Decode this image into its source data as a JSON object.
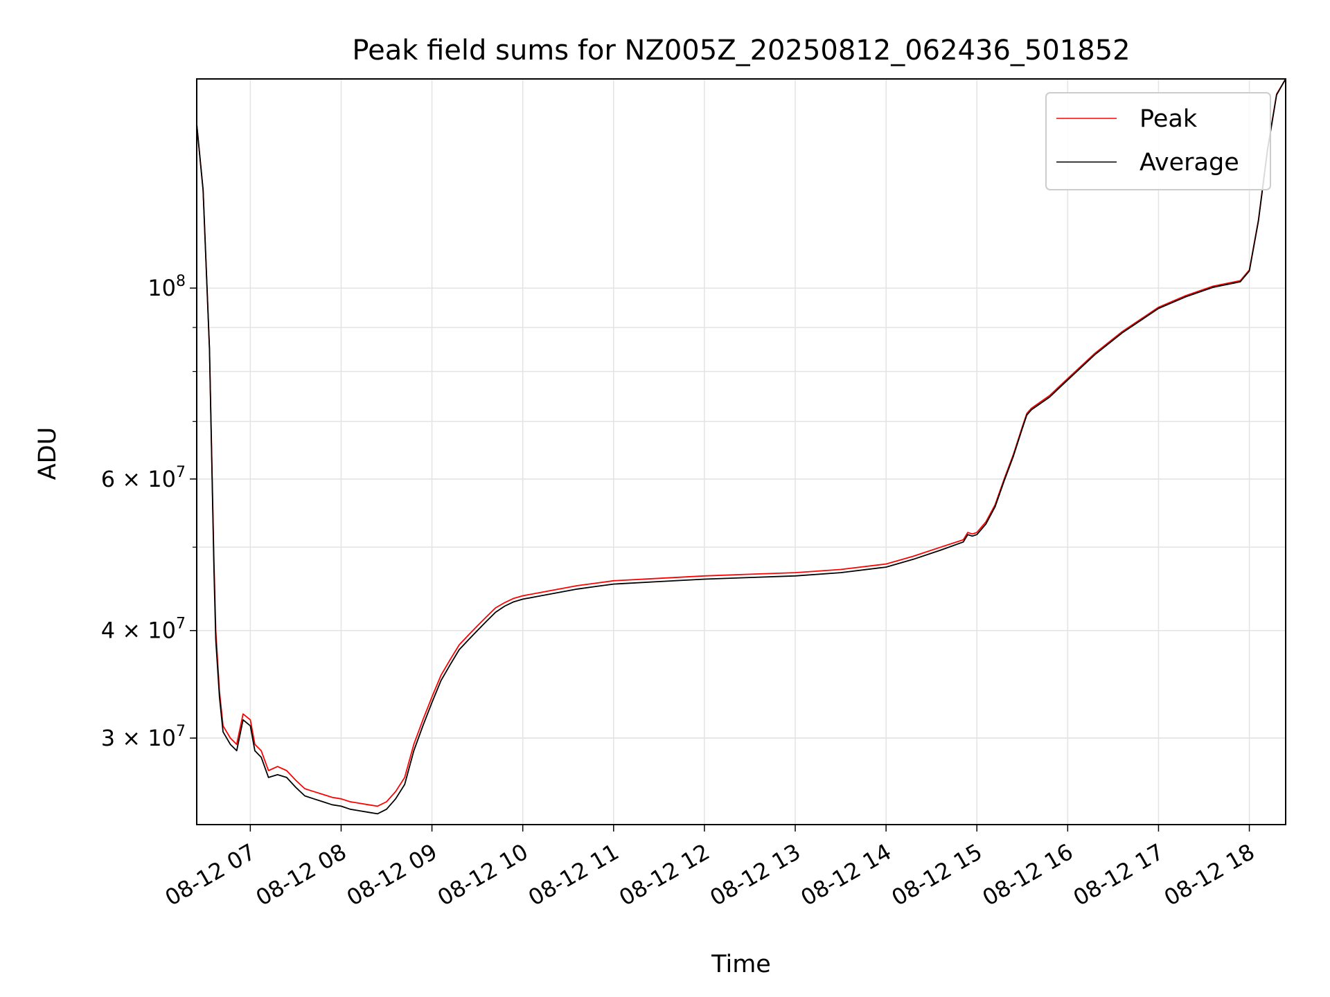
{
  "chart_data": {
    "type": "line",
    "title": "Peak field sums for NZ005Z_20250812_062436_501852",
    "xlabel": "Time",
    "ylabel": "ADU",
    "y_scale": "log",
    "grid": true,
    "legend_position": "top-right",
    "x_ticks": [
      "08-12 07",
      "08-12 08",
      "08-12 09",
      "08-12 10",
      "08-12 11",
      "08-12 12",
      "08-12 13",
      "08-12 14",
      "08-12 15",
      "08-12 16",
      "08-12 17",
      "08-12 18"
    ],
    "x_tick_hours": [
      7,
      8,
      9,
      10,
      11,
      12,
      13,
      14,
      15,
      16,
      17,
      18
    ],
    "x_range_hours": [
      6.41,
      18.4
    ],
    "y_ticks": [
      {
        "value": 30000000,
        "mant": "3",
        "exp": "7"
      },
      {
        "value": 40000000,
        "mant": "4",
        "exp": "7"
      },
      {
        "value": 60000000,
        "mant": "6",
        "exp": "7"
      },
      {
        "value": 100000000,
        "mant": "",
        "exp": "8"
      }
    ],
    "ylim": [
      23800000,
      175000000
    ],
    "series": [
      {
        "name": "Peak",
        "color": "#ff0000",
        "x_hours": [
          6.41,
          6.48,
          6.55,
          6.6,
          6.62,
          6.66,
          6.7,
          6.78,
          6.85,
          6.92,
          7.0,
          7.05,
          7.12,
          7.2,
          7.3,
          7.4,
          7.5,
          7.6,
          7.7,
          7.8,
          7.9,
          8.0,
          8.1,
          8.2,
          8.3,
          8.4,
          8.5,
          8.6,
          8.7,
          8.8,
          8.9,
          9.0,
          9.1,
          9.2,
          9.3,
          9.4,
          9.5,
          9.6,
          9.7,
          9.8,
          9.9,
          10.0,
          10.2,
          10.4,
          10.6,
          10.8,
          11.0,
          11.5,
          12.0,
          12.5,
          13.0,
          13.5,
          14.0,
          14.3,
          14.6,
          14.85,
          14.9,
          14.95,
          15.0,
          15.1,
          15.2,
          15.3,
          15.4,
          15.5,
          15.55,
          15.6,
          15.8,
          16.0,
          16.3,
          16.6,
          17.0,
          17.3,
          17.6,
          17.9,
          18.0,
          18.1,
          18.2,
          18.3,
          18.4
        ],
        "values": [
          155000000,
          130000000,
          85000000,
          48000000,
          40000000,
          34000000,
          31000000,
          30000000,
          29500000,
          32000000,
          31500000,
          29500000,
          29000000,
          27500000,
          27800000,
          27500000,
          26800000,
          26200000,
          26000000,
          25800000,
          25600000,
          25500000,
          25300000,
          25200000,
          25100000,
          25000000,
          25300000,
          26000000,
          27000000,
          29500000,
          31500000,
          33500000,
          35500000,
          37000000,
          38500000,
          39500000,
          40500000,
          41500000,
          42500000,
          43100000,
          43600000,
          43900000,
          44300000,
          44700000,
          45100000,
          45400000,
          45700000,
          46000000,
          46300000,
          46500000,
          46700000,
          47100000,
          47800000,
          48800000,
          50000000,
          51000000,
          52000000,
          51800000,
          52000000,
          53500000,
          56000000,
          60000000,
          64000000,
          69000000,
          71500000,
          72500000,
          75000000,
          78500000,
          84000000,
          89000000,
          95000000,
          98000000,
          100500000,
          102000000,
          105000000,
          120000000,
          145000000,
          168000000,
          175000000
        ]
      },
      {
        "name": "Average",
        "color": "#000000",
        "x_hours": [
          6.41,
          6.48,
          6.55,
          6.6,
          6.62,
          6.66,
          6.7,
          6.78,
          6.85,
          6.92,
          7.0,
          7.05,
          7.12,
          7.2,
          7.3,
          7.4,
          7.5,
          7.6,
          7.7,
          7.8,
          7.9,
          8.0,
          8.1,
          8.2,
          8.3,
          8.4,
          8.5,
          8.6,
          8.7,
          8.8,
          8.9,
          9.0,
          9.1,
          9.2,
          9.3,
          9.4,
          9.5,
          9.6,
          9.7,
          9.8,
          9.9,
          10.0,
          10.2,
          10.4,
          10.6,
          10.8,
          11.0,
          11.5,
          12.0,
          12.5,
          13.0,
          13.5,
          14.0,
          14.3,
          14.6,
          14.85,
          14.9,
          14.95,
          15.0,
          15.1,
          15.2,
          15.3,
          15.4,
          15.5,
          15.55,
          15.6,
          15.8,
          16.0,
          16.3,
          16.6,
          17.0,
          17.3,
          17.6,
          17.9,
          18.0,
          18.1,
          18.2,
          18.3,
          18.4
        ],
        "values": [
          155000000,
          130000000,
          85000000,
          47000000,
          39000000,
          33500000,
          30500000,
          29500000,
          29000000,
          31500000,
          31000000,
          29000000,
          28500000,
          27000000,
          27200000,
          27000000,
          26300000,
          25700000,
          25500000,
          25300000,
          25100000,
          25000000,
          24800000,
          24700000,
          24600000,
          24500000,
          24800000,
          25500000,
          26500000,
          29000000,
          31000000,
          33000000,
          35000000,
          36500000,
          38000000,
          39000000,
          40000000,
          41000000,
          42000000,
          42700000,
          43200000,
          43500000,
          43900000,
          44300000,
          44700000,
          45000000,
          45300000,
          45600000,
          45900000,
          46100000,
          46300000,
          46700000,
          47400000,
          48400000,
          49600000,
          50700000,
          51700000,
          51500000,
          51700000,
          53200000,
          55700000,
          59700000,
          63700000,
          68700000,
          71200000,
          72200000,
          74700000,
          78200000,
          83700000,
          88700000,
          94700000,
          97700000,
          100200000,
          101700000,
          104700000,
          119700000,
          144700000,
          167700000,
          175000000
        ]
      }
    ]
  }
}
